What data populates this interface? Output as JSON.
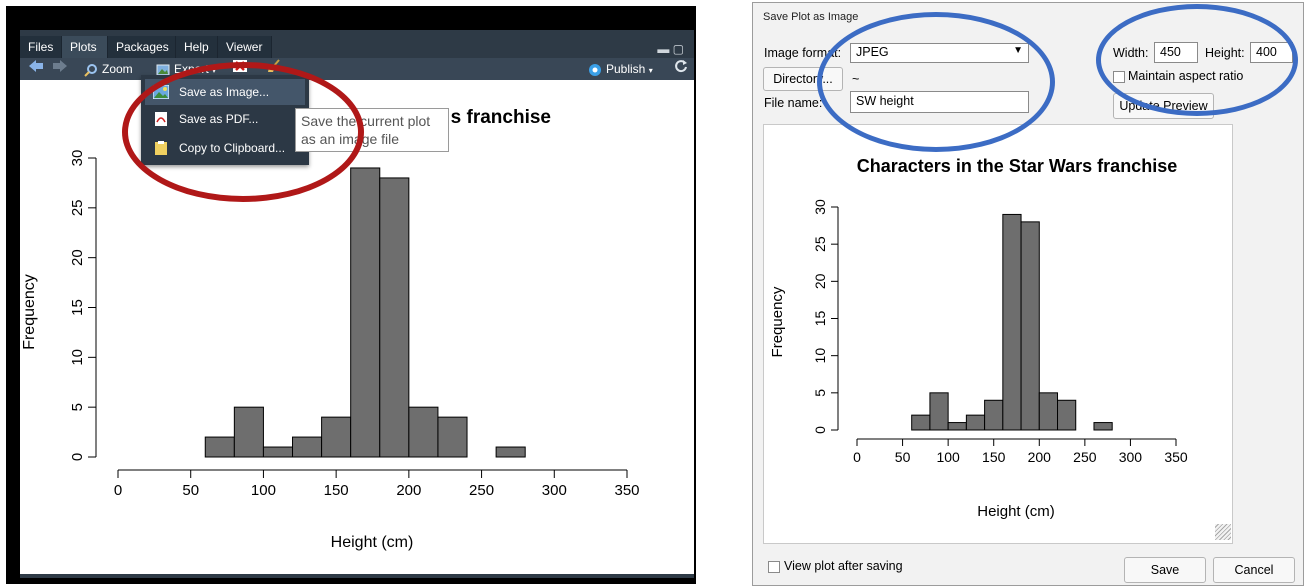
{
  "left_panel": {
    "tabs": [
      "Files",
      "Plots",
      "Packages",
      "Help",
      "Viewer"
    ],
    "toolbar": {
      "zoom_label": "Zoom",
      "export_label": "Export",
      "publish_label": "Publish"
    },
    "menu": {
      "items": [
        "Save as Image...",
        "Save as PDF...",
        "Copy to Clipboard..."
      ],
      "tooltip_line1": "Save the current plot",
      "tooltip_line2": "as an image file"
    },
    "plot_title_visible": "s franchise"
  },
  "dialog": {
    "title": "Save Plot as Image",
    "image_format_label": "Image format:",
    "image_format_value": "JPEG",
    "directory_button": "Directory...",
    "directory_value": "~",
    "file_name_label": "File name:",
    "file_name_value": "SW height",
    "width_label": "Width:",
    "width_value": "450",
    "height_label": "Height:",
    "height_value": "400",
    "maintain_aspect_label": "Maintain aspect ratio",
    "update_preview_button": "Update Preview",
    "view_after_label": "View plot after saving",
    "save_button": "Save",
    "cancel_button": "Cancel"
  },
  "annotation_colors": {
    "red_ellipse": "#b01818",
    "blue_ellipse": "#3c6cc4"
  },
  "chart_data": [
    {
      "type": "bar",
      "title": "s franchise",
      "xlabel": "Height (cm)",
      "ylabel": "Frequency",
      "bin_edges": [
        60,
        80,
        100,
        120,
        140,
        160,
        180,
        200,
        220,
        240,
        260,
        280
      ],
      "values": [
        2,
        5,
        1,
        2,
        4,
        29,
        28,
        5,
        4,
        0,
        1
      ],
      "xticks": [
        "0",
        "50",
        "100",
        "150",
        "200",
        "250",
        "300",
        "350"
      ],
      "yticks": [
        "0",
        "5",
        "10",
        "15",
        "20",
        "25",
        "30"
      ],
      "xlim": [
        0,
        350
      ],
      "ylim": [
        0,
        30
      ],
      "bar_color": "#6e6e6e"
    },
    {
      "type": "bar",
      "title": "Characters in the Star Wars franchise",
      "xlabel": "Height (cm)",
      "ylabel": "Frequency",
      "bin_edges": [
        60,
        80,
        100,
        120,
        140,
        160,
        180,
        200,
        220,
        240,
        260,
        280
      ],
      "values": [
        2,
        5,
        1,
        2,
        4,
        29,
        28,
        5,
        4,
        0,
        1
      ],
      "xticks": [
        "0",
        "50",
        "100",
        "150",
        "200",
        "250",
        "300",
        "350"
      ],
      "yticks": [
        "0",
        "5",
        "10",
        "15",
        "20",
        "25",
        "30"
      ],
      "xlim": [
        0,
        350
      ],
      "ylim": [
        0,
        30
      ],
      "bar_color": "#6e6e6e"
    }
  ]
}
